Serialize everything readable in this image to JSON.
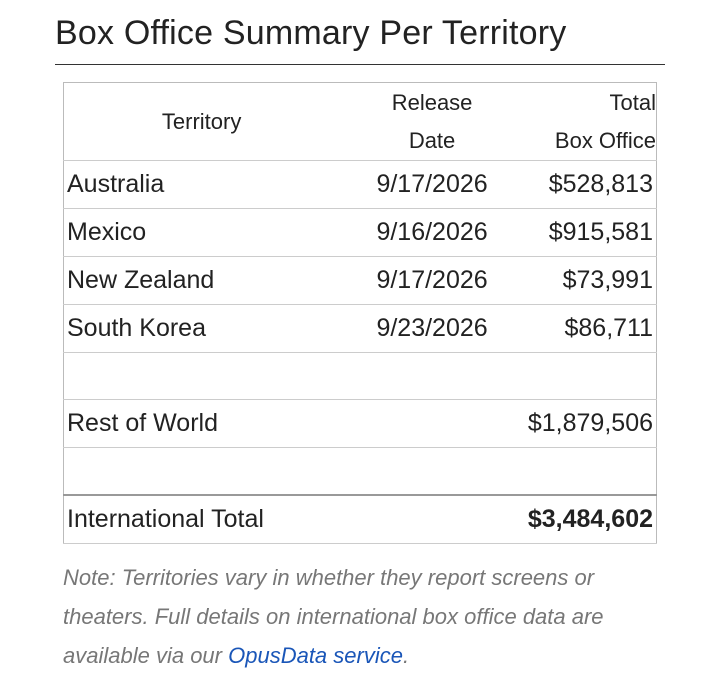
{
  "header": {
    "title": "Box Office Summary Per Territory"
  },
  "table": {
    "columns": [
      [
        "Territory"
      ],
      [
        "Release",
        "Date"
      ],
      [
        "Total",
        "Box Office"
      ]
    ],
    "rows": [
      [
        "Australia",
        "9/17/2026",
        "$528,813"
      ],
      [
        "Mexico",
        "9/16/2026",
        "$915,581"
      ],
      [
        "New Zealand",
        "9/17/2026",
        "$73,991"
      ],
      [
        "South Korea",
        "9/23/2026",
        "$86,711"
      ]
    ],
    "rest": {
      "label": "Rest of World",
      "value": "$1,879,506"
    },
    "total": {
      "label": "International Total",
      "value": "$3,484,602"
    }
  },
  "note": {
    "text": "Note: Territories vary in whether they report screens or theaters. Full details on international box office data are available via our ",
    "link": "OpusData service",
    "end": "."
  }
}
